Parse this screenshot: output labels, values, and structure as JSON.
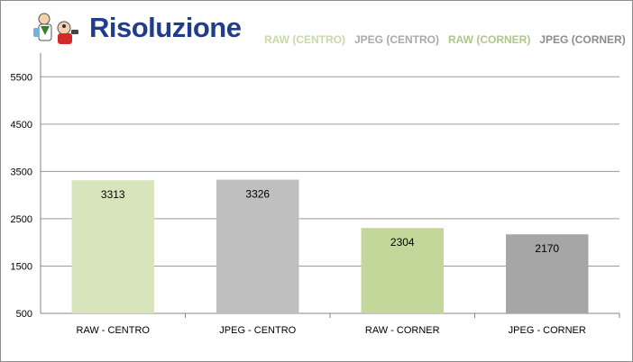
{
  "chart_data": {
    "type": "bar",
    "title": "Risoluzione",
    "categories": [
      "RAW - CENTRO",
      "JPEG - CENTRO",
      "RAW - CORNER",
      "JPEG - CORNER"
    ],
    "values": [
      3313,
      3326,
      2304,
      2170
    ],
    "bar_colors": [
      "#d8e4bc",
      "#bfbfbf",
      "#c4d79b",
      "#a6a6a6"
    ],
    "legend": [
      {
        "label": "RAW (CENTRO)",
        "color": "#d8e4bc"
      },
      {
        "label": "JPEG (CENTRO)",
        "color": "#bfbfbf"
      },
      {
        "label": "RAW (CORNER)",
        "color": "#c4d79b"
      },
      {
        "label": "JPEG (CORNER)",
        "color": "#a6a6a6"
      }
    ],
    "legend_position": "top-right",
    "ylim": [
      500,
      6000
    ],
    "yticks": [
      "500",
      "1500",
      "2500",
      "3500",
      "4500",
      "5500"
    ],
    "grid": true,
    "xlabel": "",
    "ylabel": ""
  },
  "logo": {
    "icon": "scientist-mascot-icon"
  }
}
